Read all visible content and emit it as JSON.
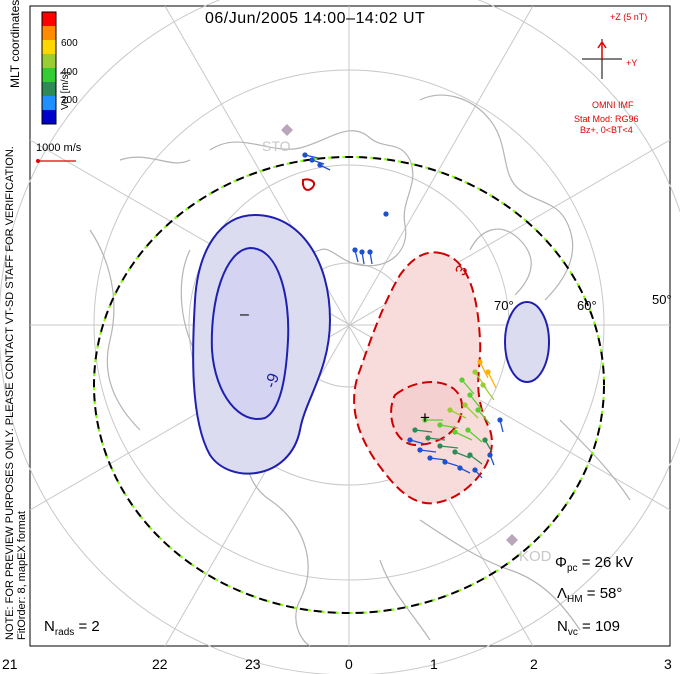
{
  "title": "06/Jun/2005 14:00–14:02 UT",
  "colorbar": {
    "label": "Vel [m/s]",
    "ticks": [
      "600",
      "400",
      "200"
    ],
    "colors": [
      "#ff0000",
      "#ff8c00",
      "#ffd700",
      "#9acd32",
      "#32cd32",
      "#2e8b57",
      "#1e90ff",
      "#0000cd"
    ]
  },
  "coord_label": "MLT coordinates",
  "scale_vector_label": "1000 m/s",
  "imf": {
    "z_label": "+Z (5 nT)",
    "y_label": "+Y",
    "source": "OMNI IMF",
    "stat_mod": "Stat Mod: RG96",
    "condition": "Bz+, 0<BT<4"
  },
  "preview_note": "NOTE: FOR PREVIEW PURPOSES ONLY. PLEASE CONTACT VT-SD STAFF FOR VERIFICATION.",
  "fit_note": "FitOrder: 8, mapEX format",
  "latitude_labels": [
    "70°",
    "60°",
    "50°"
  ],
  "contour_labels": [
    "–",
    "-9",
    "3",
    "+"
  ],
  "stations": [
    "STO",
    "KOD"
  ],
  "stats": {
    "phi_symbol": "Φ",
    "phi_sub": "pc",
    "phi_value": "= 26 kV",
    "lambda_symbol": "Λ",
    "lambda_sub": "HM",
    "lambda_value": "= 58°",
    "nvc_symbol": "N",
    "nvc_sub": "vc",
    "nvc_value": "= 109",
    "nrads_symbol": "N",
    "nrads_sub": "rads",
    "nrads_value": "= 2"
  },
  "mlt_ticks": [
    "21",
    "22",
    "23",
    "0",
    "1",
    "2",
    "3"
  ]
}
